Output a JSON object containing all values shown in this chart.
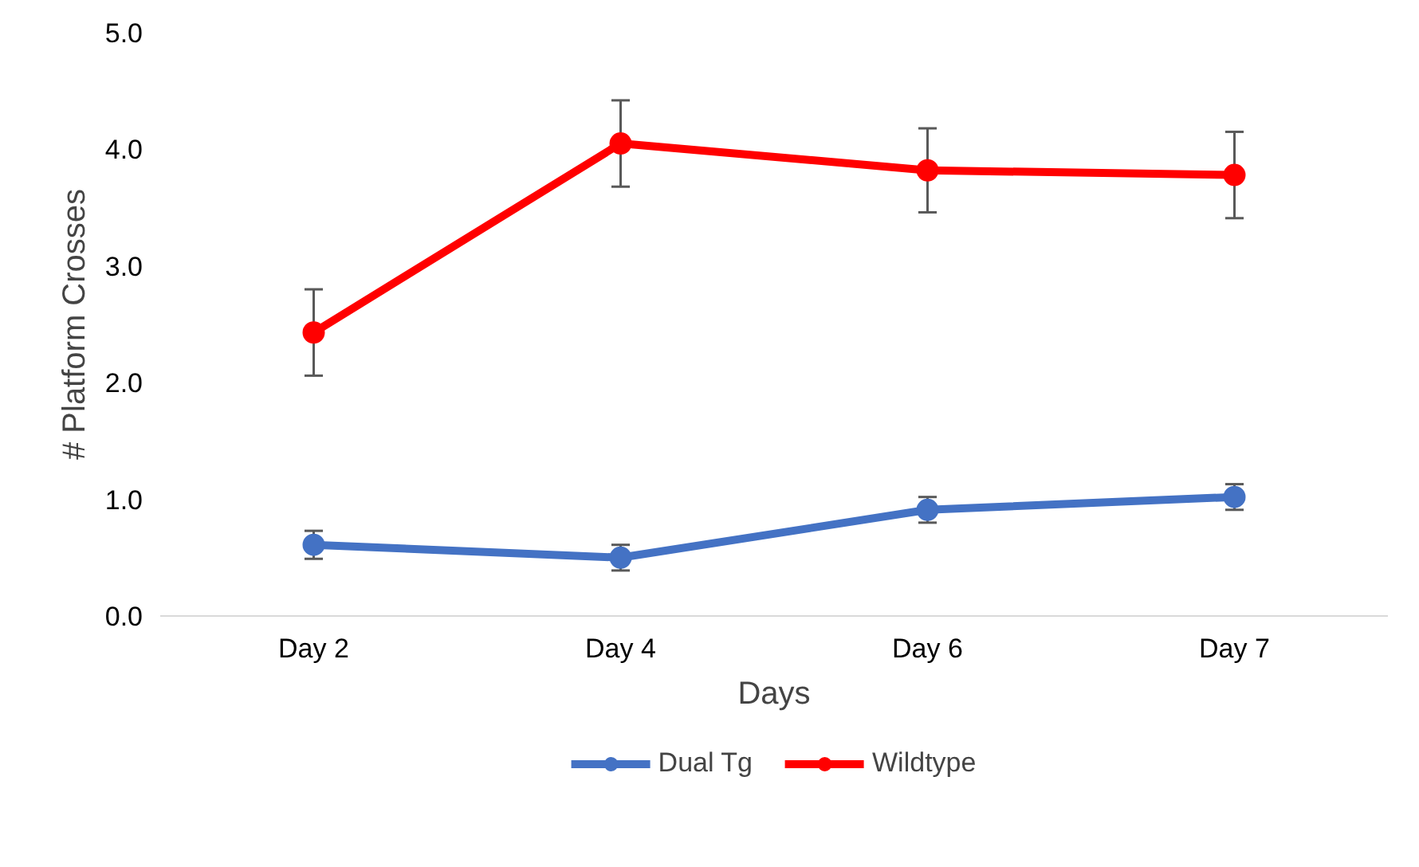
{
  "chart_data": {
    "type": "line",
    "categories": [
      "Day 2",
      "Day 4",
      "Day 6",
      "Day 7"
    ],
    "xlabel": "Days",
    "ylabel": "# Platform Crosses",
    "ylim": [
      0,
      5
    ],
    "yticks": [
      {
        "value": 0,
        "label": "0.0"
      },
      {
        "value": 1,
        "label": "1.0"
      },
      {
        "value": 2,
        "label": "2.0"
      },
      {
        "value": 3,
        "label": "3.0"
      },
      {
        "value": 4,
        "label": "4.0"
      },
      {
        "value": 5,
        "label": "5.0"
      }
    ],
    "grid": false,
    "legend": "bottom",
    "marker": "circle",
    "line_style": "solid",
    "series": [
      {
        "name": "Dual Tg",
        "color": "#4472c4",
        "values": [
          0.61,
          0.5,
          0.91,
          1.02
        ],
        "errors": [
          0.12,
          0.11,
          0.11,
          0.11
        ]
      },
      {
        "name": "Wildtype",
        "color": "#ff0000",
        "values": [
          2.43,
          4.05,
          3.82,
          3.78
        ],
        "errors": [
          0.37,
          0.37,
          0.36,
          0.37
        ]
      }
    ]
  }
}
